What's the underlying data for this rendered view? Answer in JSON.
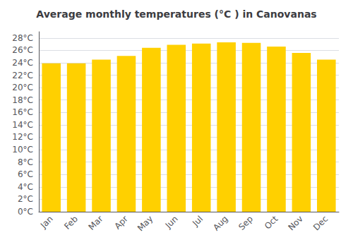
{
  "chart_data": {
    "type": "bar",
    "title": "Average monthly temperatures (°C ) in Canovanas",
    "categories": [
      "Jan",
      "Feb",
      "Mar",
      "Apr",
      "May",
      "Jun",
      "Jul",
      "Aug",
      "Sep",
      "Oct",
      "Nov",
      "Dec"
    ],
    "values": [
      23.9,
      23.9,
      24.5,
      25.1,
      26.4,
      26.9,
      27.1,
      27.3,
      27.2,
      26.6,
      25.6,
      24.5
    ],
    "color": "#FFD000",
    "ylim": [
      0,
      29
    ],
    "yticks": [
      {
        "value": 0,
        "label": "0°C"
      },
      {
        "value": 2,
        "label": "2°C"
      },
      {
        "value": 4,
        "label": "4°C"
      },
      {
        "value": 6,
        "label": "6°C"
      },
      {
        "value": 8,
        "label": "8°C"
      },
      {
        "value": 10,
        "label": "10°C"
      },
      {
        "value": 12,
        "label": "12°C"
      },
      {
        "value": 14,
        "label": "14°C"
      },
      {
        "value": 16,
        "label": "16°C"
      },
      {
        "value": 18,
        "label": "18°C"
      },
      {
        "value": 20,
        "label": "20°C"
      },
      {
        "value": 22,
        "label": "22°C"
      },
      {
        "value": 24,
        "label": "24°C"
      },
      {
        "value": 26,
        "label": "26°C"
      },
      {
        "value": 28,
        "label": "28°C"
      }
    ],
    "grid": true
  }
}
